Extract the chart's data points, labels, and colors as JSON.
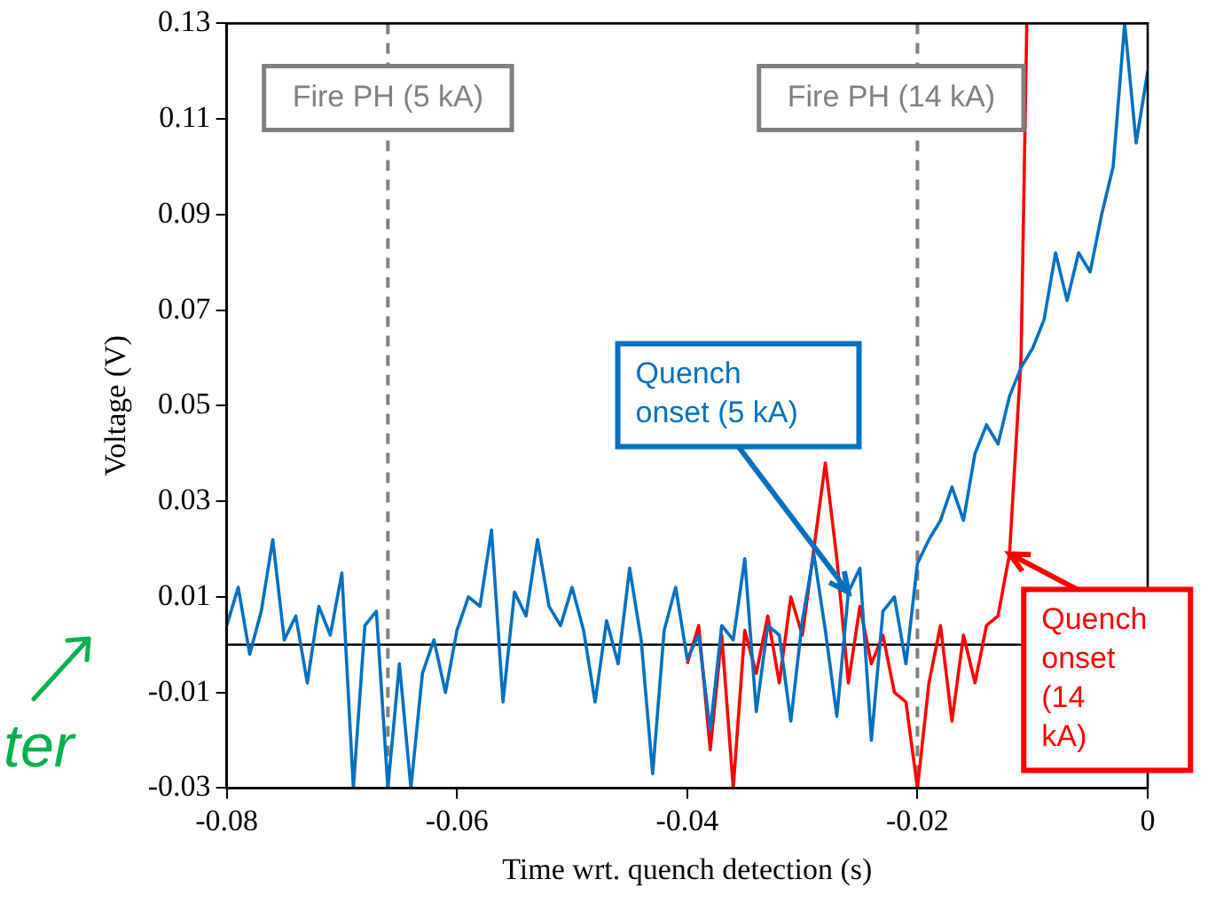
{
  "chart_data": {
    "type": "line",
    "xlabel": "Time wrt. quench detection (s)",
    "ylabel": "Voltage (V)",
    "xlim": [
      -0.08,
      0
    ],
    "xticks": [
      -0.08,
      -0.06,
      -0.04,
      -0.02,
      0
    ],
    "ylim": [
      -0.03,
      0.13
    ],
    "yticks": [
      -0.03,
      -0.01,
      0.01,
      0.03,
      0.05,
      0.07,
      0.09,
      0.11,
      0.13
    ],
    "marker": "none",
    "line_style": "solid",
    "series": [
      {
        "color": "#0070c0",
        "x": [
          -0.08,
          -0.079,
          -0.078,
          -0.077,
          -0.076,
          -0.075,
          -0.074,
          -0.073,
          -0.072,
          -0.071,
          -0.07,
          -0.069,
          -0.068,
          -0.067,
          -0.066,
          -0.065,
          -0.064,
          -0.063,
          -0.062,
          -0.061,
          -0.06,
          -0.059,
          -0.058,
          -0.057,
          -0.056,
          -0.055,
          -0.054,
          -0.053,
          -0.052,
          -0.051,
          -0.05,
          -0.049,
          -0.048,
          -0.047,
          -0.046,
          -0.045,
          -0.044,
          -0.043,
          -0.042,
          -0.041,
          -0.04,
          -0.039,
          -0.038,
          -0.037,
          -0.036,
          -0.035,
          -0.034,
          -0.033,
          -0.032,
          -0.031,
          -0.03,
          -0.029,
          -0.028,
          -0.027,
          -0.026,
          -0.025,
          -0.024,
          -0.023,
          -0.022,
          -0.021,
          -0.02,
          -0.019,
          -0.018,
          -0.017,
          -0.016,
          -0.015,
          -0.014,
          -0.013,
          -0.012,
          -0.011,
          -0.01,
          -0.009,
          -0.008,
          -0.007,
          -0.006,
          -0.005,
          -0.004,
          -0.003,
          -0.002,
          -0.001,
          0
        ],
        "values": [
          0.004,
          0.012,
          -0.002,
          0.007,
          0.022,
          0.001,
          0.006,
          -0.008,
          0.008,
          0.002,
          0.015,
          -0.03,
          0.004,
          0.007,
          -0.03,
          -0.004,
          -0.03,
          -0.006,
          0.001,
          -0.01,
          0.003,
          0.01,
          0.008,
          0.024,
          -0.012,
          0.011,
          0.006,
          0.022,
          0.008,
          0.004,
          0.012,
          0.003,
          -0.012,
          0.005,
          -0.004,
          0.016,
          0.001,
          -0.027,
          0.003,
          0.012,
          -0.003,
          0.002,
          -0.018,
          0.004,
          0.001,
          0.018,
          -0.014,
          0.004,
          0.002,
          -0.016,
          0.005,
          0.019,
          0.003,
          -0.015,
          0.011,
          0.016,
          -0.02,
          0.007,
          0.01,
          -0.004,
          0.017,
          0.022,
          0.026,
          0.033,
          0.026,
          0.04,
          0.046,
          0.042,
          0.052,
          0.058,
          0.062,
          0.068,
          0.082,
          0.072,
          0.082,
          0.078,
          0.09,
          0.1,
          0.13,
          0.105,
          0.12
        ]
      },
      {
        "color": "#ff0000",
        "x": [
          -0.04,
          -0.039,
          -0.038,
          -0.037,
          -0.036,
          -0.035,
          -0.034,
          -0.033,
          -0.032,
          -0.031,
          -0.03,
          -0.029,
          -0.028,
          -0.027,
          -0.026,
          -0.025,
          -0.024,
          -0.023,
          -0.022,
          -0.021,
          -0.02,
          -0.019,
          -0.018,
          -0.017,
          -0.016,
          -0.015,
          -0.014,
          -0.013,
          -0.012,
          -0.011,
          -0.0105
        ],
        "values": [
          -0.004,
          0.004,
          -0.022,
          0.002,
          -0.03,
          0.003,
          -0.006,
          0.006,
          -0.008,
          0.01,
          0.002,
          0.02,
          0.038,
          0.018,
          -0.008,
          0.008,
          -0.004,
          0.002,
          -0.01,
          -0.012,
          -0.03,
          -0.008,
          0.004,
          -0.016,
          0.002,
          -0.008,
          0.004,
          0.006,
          0.019,
          0.06,
          0.13
        ]
      }
    ],
    "ref_lines": [
      {
        "axis": "x",
        "value": -0.066,
        "label": "Fire PH (5 kA)",
        "color": "#808080",
        "line_style": "dashed"
      },
      {
        "axis": "x",
        "value": -0.02,
        "label": "Fire PH (14 kA)",
        "color": "#808080",
        "line_style": "dashed"
      },
      {
        "axis": "y",
        "value": 0,
        "color": "#000000",
        "line_style": "solid"
      }
    ],
    "annotations": [
      {
        "text": "Quench onset (5 kA)",
        "x": -0.026,
        "y": 0.011
      },
      {
        "text": "Quench onset (14 kA)",
        "x": -0.012,
        "y": 0.019
      },
      "ter"
    ]
  }
}
